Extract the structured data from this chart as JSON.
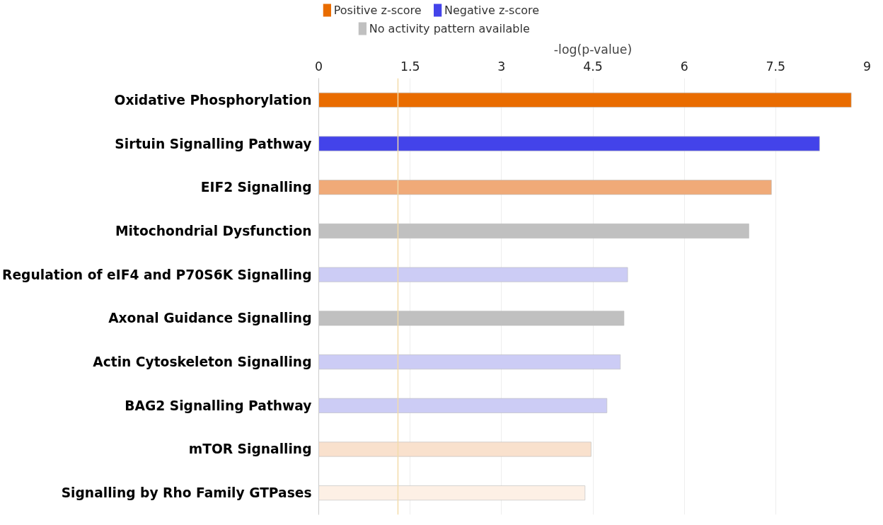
{
  "chart_data": {
    "type": "bar",
    "orientation": "horizontal",
    "xlabel": "-log(p-value)",
    "categories": [
      "Oxidative Phosphorylation",
      "Sirtuin Signalling Pathway",
      "EIF2 Signalling",
      "Mitochondrial Dysfunction",
      "Regulation of eIF4 and P70S6K Signalling",
      "Axonal Guidance Signalling",
      "Actin Cytoskeleton Signalling",
      "BAG2 Signalling Pathway",
      "mTOR Signalling",
      "Signalling by Rho Family GTPases"
    ],
    "series": [
      {
        "name": "Positive z-score",
        "color": "#e96c00",
        "colors": [
          "#e96c00",
          null,
          "#f0aa78",
          null,
          null,
          null,
          null,
          null,
          "#f9e1cd",
          "#fdf0e5"
        ],
        "values": [
          8.74,
          null,
          7.43,
          null,
          null,
          null,
          null,
          null,
          4.47,
          4.37
        ]
      },
      {
        "name": "Negative z-score",
        "color": "#4343ea",
        "colors": [
          null,
          "#4343ea",
          null,
          null,
          "#ccccf5",
          null,
          "#ccccf5",
          "#ccccf5",
          null,
          null
        ],
        "values": [
          null,
          8.22,
          null,
          null,
          5.07,
          null,
          4.95,
          4.73,
          null,
          null
        ]
      },
      {
        "name": "No activity pattern available",
        "color": "#c0c0c0",
        "colors": [
          null,
          null,
          null,
          "#c0c0c0",
          null,
          "#c0c0c0",
          null,
          null,
          null,
          null
        ],
        "values": [
          null,
          null,
          null,
          7.06,
          null,
          5.01,
          null,
          null,
          null,
          null
        ]
      }
    ],
    "xlim": [
      0,
      9
    ],
    "xticks": [
      0,
      1.5,
      3,
      4.5,
      6,
      7.5,
      9
    ],
    "grid": "x",
    "legend": "top left",
    "ref_lines": [
      {
        "axis": "x",
        "value": 1.3,
        "color": "#f3dcaa"
      }
    ]
  }
}
